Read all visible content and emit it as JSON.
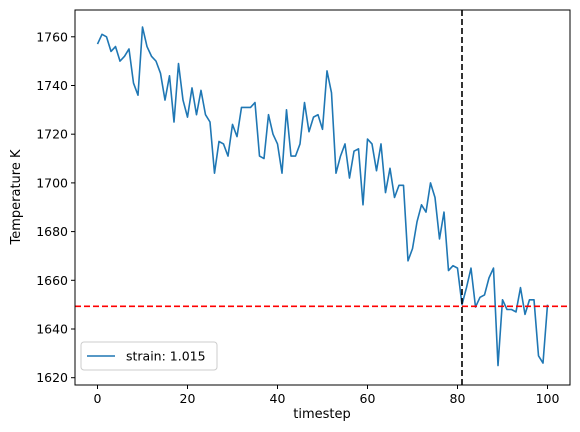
{
  "chart_data": {
    "type": "line",
    "title": "",
    "xlabel": "timestep",
    "ylabel": "Temperature K",
    "xlim": [
      -5,
      105
    ],
    "ylim": [
      1617,
      1771
    ],
    "x_ticks": [
      0,
      20,
      40,
      60,
      80,
      100
    ],
    "y_ticks": [
      1620,
      1640,
      1660,
      1680,
      1700,
      1720,
      1740,
      1760
    ],
    "grid": false,
    "legend_position": "lower left",
    "series": [
      {
        "name": "strain: 1.015",
        "color": "#1f77b4",
        "x": [
          0,
          1,
          2,
          3,
          4,
          5,
          6,
          7,
          8,
          9,
          10,
          11,
          12,
          13,
          14,
          15,
          16,
          17,
          18,
          19,
          20,
          21,
          22,
          23,
          24,
          25,
          26,
          27,
          28,
          29,
          30,
          31,
          32,
          33,
          34,
          35,
          36,
          37,
          38,
          39,
          40,
          41,
          42,
          43,
          44,
          45,
          46,
          47,
          48,
          49,
          50,
          51,
          52,
          53,
          54,
          55,
          56,
          57,
          58,
          59,
          60,
          61,
          62,
          63,
          64,
          65,
          66,
          67,
          68,
          69,
          70,
          71,
          72,
          73,
          74,
          75,
          76,
          77,
          78,
          79,
          80,
          81,
          82,
          83,
          84,
          85,
          86,
          87,
          88,
          89,
          90,
          91,
          92,
          93,
          94,
          95,
          96,
          97,
          98,
          99,
          100
        ],
        "values": [
          1757,
          1761,
          1760,
          1754,
          1756,
          1750,
          1752,
          1755,
          1741,
          1736,
          1764,
          1756,
          1752,
          1750,
          1745,
          1734,
          1744,
          1725,
          1749,
          1734,
          1727,
          1739,
          1728,
          1738,
          1728,
          1725,
          1704,
          1717,
          1716,
          1711,
          1724,
          1719,
          1731,
          1731,
          1731,
          1733,
          1711,
          1710,
          1728,
          1720,
          1716,
          1704,
          1730,
          1711,
          1711,
          1716,
          1733,
          1721,
          1727,
          1728,
          1722,
          1746,
          1737,
          1704,
          1711,
          1716,
          1702,
          1713,
          1714,
          1691,
          1718,
          1716,
          1705,
          1716,
          1696,
          1706,
          1694,
          1699,
          1699,
          1668,
          1673,
          1684,
          1691,
          1688,
          1700,
          1694,
          1677,
          1688,
          1664,
          1666,
          1665,
          1650,
          1657,
          1665,
          1649,
          1653,
          1654,
          1661,
          1665,
          1625,
          1652,
          1648,
          1648,
          1647,
          1657,
          1646,
          1652,
          1652,
          1629,
          1626,
          1650
        ]
      }
    ],
    "annotations": {
      "vline": {
        "x": 81,
        "style": "dashed",
        "color": "#000000"
      },
      "hline": {
        "y": 1649.3,
        "style": "dashed",
        "color": "#ff0000"
      }
    }
  }
}
